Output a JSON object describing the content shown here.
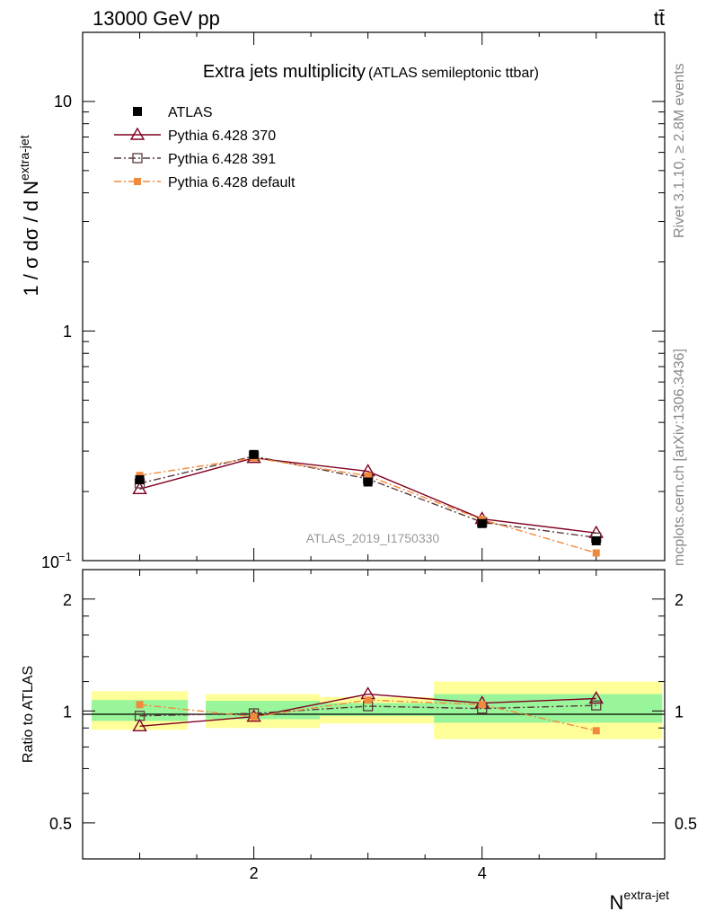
{
  "header": {
    "energy_label": "13000 GeV pp",
    "process_label": "tt̄"
  },
  "side_labels": {
    "rivet": "Rivet 3.1.10, ≥ 2.8M events",
    "source": "mcplots.cern.ch [arXiv:1306.3436]"
  },
  "chart_data": [
    {
      "type": "line",
      "panel": "main",
      "title": "Extra jets multiplicity",
      "subtitle": "(ATLAS semileptonic ttbar)",
      "ylabel": "1 / σ dσ / d N",
      "ylabel_superscript": "extra-jet",
      "analysis_id": "ATLAS_2019_I1750330",
      "yscale": "log",
      "xlim": [
        0.5,
        5.6
      ],
      "ylim": [
        0.1,
        20
      ],
      "y_tick_labels": {
        "major_values": [
          1,
          10
        ],
        "bottom_label": "10",
        "bottom_label_exp": "−1"
      },
      "legend_position": "top-left",
      "x": [
        1,
        2,
        3,
        4,
        5
      ],
      "series": [
        {
          "name": "ATLAS",
          "values": [
            0.225,
            0.29,
            0.22,
            0.145,
            0.122
          ],
          "marker": "filled-square",
          "color": "#000000"
        },
        {
          "name": "Pythia 6.428 370",
          "values": [
            0.205,
            0.28,
            0.245,
            0.152,
            0.132
          ],
          "marker": "open-triangle",
          "line": "solid",
          "color": "#800020"
        },
        {
          "name": "Pythia 6.428 391",
          "values": [
            0.217,
            0.285,
            0.227,
            0.147,
            0.126
          ],
          "marker": "open-square",
          "line": "dash-dot",
          "color": "#5a3a3a"
        },
        {
          "name": "Pythia 6.428 default",
          "values": [
            0.235,
            0.28,
            0.234,
            0.151,
            0.108
          ],
          "marker": "filled-square-small",
          "line": "dash-dot",
          "color": "#f28a3c"
        }
      ]
    },
    {
      "type": "line",
      "panel": "ratio",
      "ylabel": "Ratio to ATLAS",
      "xlabel": "N",
      "xlabel_superscript": "extra-jet",
      "x_tick_labels": [
        "2",
        "4"
      ],
      "y_tick_labels": [
        "0.5",
        "1",
        "2"
      ],
      "xlim": [
        0.5,
        5.6
      ],
      "ylim": [
        0.4,
        2.4
      ],
      "yscale": "log",
      "bands": [
        {
          "x_range": [
            0.5,
            1.5
          ],
          "green": [
            0.94,
            1.07
          ],
          "yellow": [
            0.89,
            1.13
          ]
        },
        {
          "x_range": [
            1.5,
            2.5
          ],
          "green": [
            0.95,
            1.065
          ],
          "yellow": [
            0.9,
            1.11
          ]
        },
        {
          "x_range": [
            2.5,
            3.5
          ],
          "green": [
            0.97,
            1.05
          ],
          "yellow": [
            0.925,
            1.09
          ]
        },
        {
          "x_range": [
            3.5,
            5.5
          ],
          "green": [
            0.93,
            1.11
          ],
          "yellow": [
            0.84,
            1.2
          ]
        }
      ],
      "x": [
        1,
        2,
        3,
        4,
        5
      ],
      "series": [
        {
          "name": "Pythia 6.428 370",
          "values": [
            0.91,
            0.965,
            1.11,
            1.05,
            1.08
          ],
          "color": "#800020"
        },
        {
          "name": "Pythia 6.428 391",
          "values": [
            0.97,
            0.985,
            1.03,
            1.015,
            1.035
          ],
          "color": "#5a3a3a"
        },
        {
          "name": "Pythia 6.428 default",
          "values": [
            1.04,
            0.965,
            1.07,
            1.04,
            0.885
          ],
          "color": "#f28a3c"
        }
      ]
    }
  ]
}
